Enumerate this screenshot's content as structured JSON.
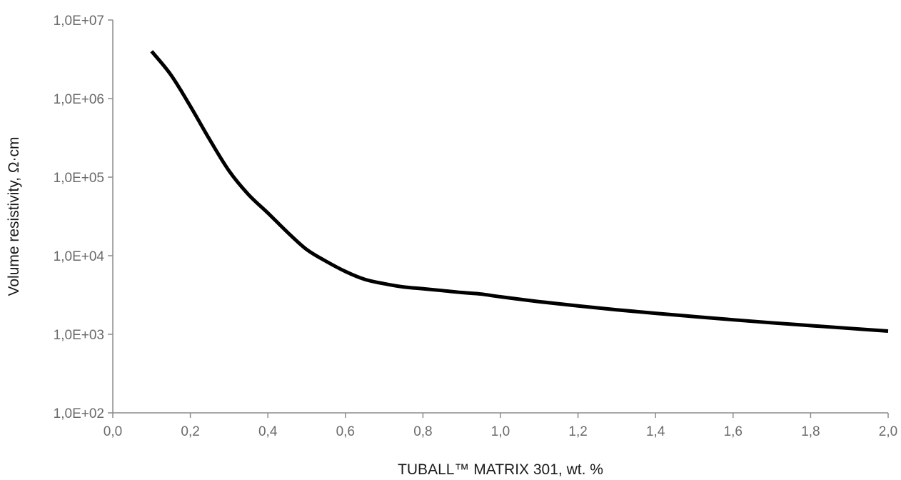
{
  "chart_data": {
    "type": "line",
    "xlabel": "TUBALL™ MATRIX 301, wt. %",
    "ylabel": "Volume resistivity, Ω·cm",
    "xlim": [
      0.0,
      2.0
    ],
    "ylim": [
      100,
      10000000
    ],
    "yscale": "log",
    "grid": false,
    "x_ticks": [
      "0,0",
      "0,2",
      "0,4",
      "0,6",
      "0,8",
      "1,0",
      "1,2",
      "1,4",
      "1,6",
      "1,8",
      "2,0"
    ],
    "y_ticks": [
      "1,0E+02",
      "1,0E+03",
      "1,0E+04",
      "1,0E+05",
      "1,0E+06",
      "1,0E+07"
    ],
    "series": [
      {
        "color": "#000000",
        "x": [
          0.1,
          0.15,
          0.2,
          0.25,
          0.3,
          0.35,
          0.4,
          0.45,
          0.5,
          0.55,
          0.6,
          0.65,
          0.7,
          0.75,
          0.8,
          0.85,
          0.9,
          0.95,
          1.0,
          1.1,
          1.2,
          1.3,
          1.4,
          1.5,
          1.6,
          1.7,
          1.8,
          1.9,
          2.0
        ],
        "y": [
          4000000,
          2000000,
          800000,
          300000,
          120000,
          60000,
          35000,
          20000,
          12000,
          8500,
          6300,
          5000,
          4400,
          4000,
          3800,
          3600,
          3400,
          3250,
          3000,
          2600,
          2300,
          2050,
          1850,
          1680,
          1530,
          1400,
          1290,
          1190,
          1100
        ]
      }
    ]
  }
}
